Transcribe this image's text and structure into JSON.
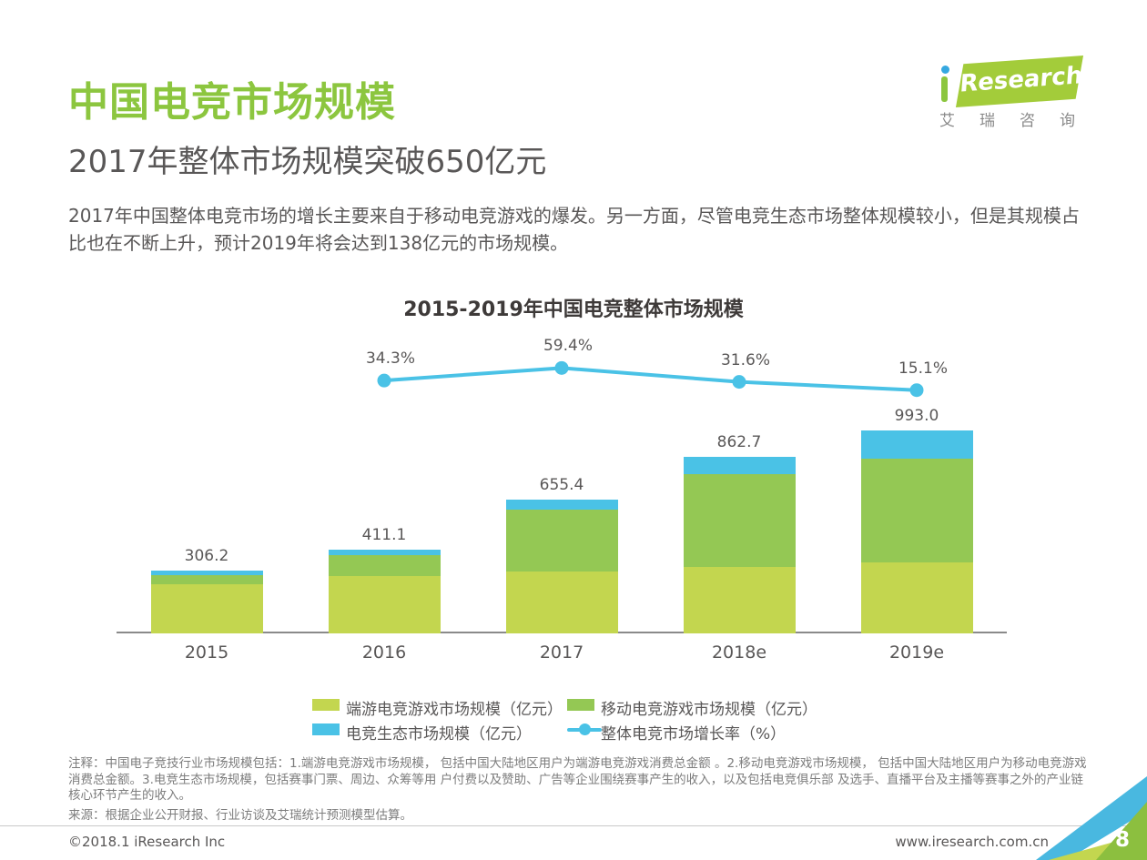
{
  "page": {
    "title": "中国电竞市场规模",
    "subtitle": "2017年整体市场规模突破650亿元",
    "body": "2017年中国整体电竞市场的增长主要来自于移动电竞游戏的爆发。另一方面，尽管电竞生态市场整体规模较小，但是其规模占比也在不断上升，预计2019年将会达到138亿元的市场规模。",
    "notes": "注释：中国电子竞技行业市场规模包括：1.端游电竞游戏市场规模， 包括中国大陆地区用户为端游电竞游戏消费总金额 。2.移动电竞游戏市场规模， 包括中国大陆地区用户为移动电竞游戏消费总金额。3.电竞生态市场规模，包括赛事门票、周边、众筹等用 户付费以及赞助、广告等企业围绕赛事产生的收入，以及包括电竞俱乐部 及选手、直播平台及主播等赛事之外的产业链核心环节产生的收入。",
    "source": "来源：根据企业公开财报、行业访谈及艾瑞统计预测模型估算。",
    "footer_left": "©2018.1 iResearch Inc",
    "footer_right": "www.iresearch.com.cn",
    "page_number": "8",
    "accent_green": "#8cc63f",
    "text_gray": "#595757"
  },
  "logo": {
    "brand": "Research",
    "cn": "艾瑞咨询"
  },
  "chart_data": {
    "type": "bar",
    "subtype": "stacked-bar-with-line",
    "title": "2015-2019年中国电竞整体市场规模",
    "categories": [
      "2015",
      "2016",
      "2017",
      "2018e",
      "2019e"
    ],
    "totals": [
      306.2,
      411.1,
      655.4,
      862.7,
      993.0
    ],
    "total_labels": [
      "306.2",
      "411.1",
      "655.4",
      "862.7",
      "993.0"
    ],
    "series": [
      {
        "name": "端游电竞游戏市场规模（亿元）",
        "color": "#c3d64f",
        "values": [
          241.5,
          280.0,
          301.5,
          324.8,
          347.0
        ]
      },
      {
        "name": "移动电竞游戏市场规模（亿元）",
        "color": "#94c854",
        "values": [
          44.9,
          101.1,
          303.3,
          451.5,
          508.0
        ]
      },
      {
        "name": "电竞生态市场规模（亿元）",
        "color": "#4ac2e6",
        "values": [
          19.8,
          30.0,
          50.6,
          86.4,
          138.0
        ]
      }
    ],
    "growth_series": {
      "name": "整体电竞市场增长率（%）",
      "color": "#4ac2e6",
      "categories": [
        "2016",
        "2017",
        "2018e",
        "2019e"
      ],
      "values": [
        34.3,
        59.4,
        31.6,
        15.1
      ],
      "labels": [
        "34.3%",
        "59.4%",
        "31.6%",
        "15.1%"
      ]
    },
    "legend_position": "bottom",
    "grid": false,
    "value_axis_visible": false,
    "ylim": [
      0,
      1050
    ]
  }
}
